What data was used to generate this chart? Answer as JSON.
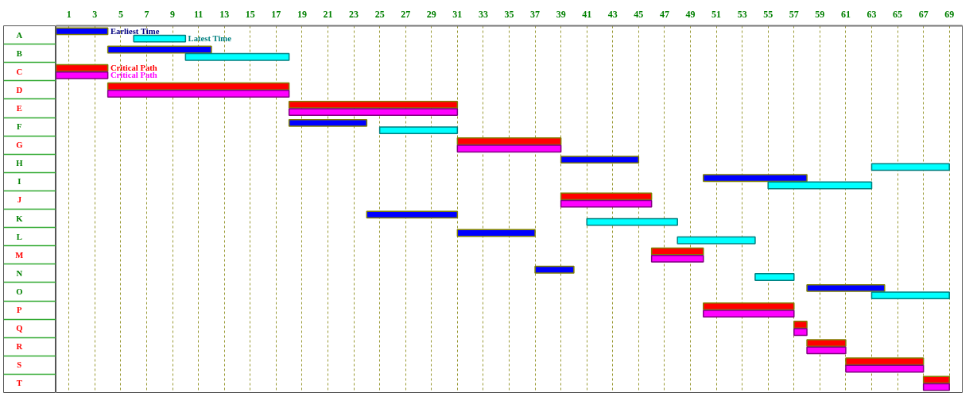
{
  "chart_data": {
    "type": "bar",
    "orientation": "horizontal",
    "legend": false,
    "grid": "x",
    "categories": [
      "A",
      "B",
      "C",
      "D",
      "E",
      "F",
      "G",
      "H",
      "I",
      "J",
      "K",
      "L",
      "M",
      "N",
      "O",
      "P",
      "Q",
      "R",
      "S",
      "T"
    ],
    "xlim": [
      0,
      70
    ],
    "xticks": [
      1,
      3,
      5,
      7,
      9,
      11,
      13,
      15,
      17,
      19,
      21,
      23,
      25,
      27,
      29,
      31,
      33,
      35,
      37,
      39,
      41,
      43,
      45,
      47,
      49,
      51,
      53,
      55,
      57,
      59,
      61,
      63,
      65,
      67,
      69
    ],
    "series": [
      {
        "name": "Earliest Time",
        "color": "#0000ff",
        "base": [
          0,
          4,
          null,
          null,
          null,
          18,
          null,
          39,
          50,
          null,
          24,
          31,
          null,
          37,
          58,
          null,
          null,
          null,
          null,
          null
        ],
        "values": [
          4,
          8,
          null,
          null,
          null,
          6,
          null,
          6,
          8,
          null,
          7,
          6,
          null,
          3,
          6,
          null,
          null,
          null,
          null,
          null
        ]
      },
      {
        "name": "Latest Time",
        "color": "#00ffff",
        "base": [
          6,
          10,
          null,
          null,
          null,
          25,
          null,
          63,
          55,
          null,
          41,
          48,
          null,
          54,
          63,
          null,
          null,
          null,
          null,
          null
        ],
        "values": [
          4,
          8,
          null,
          null,
          null,
          6,
          null,
          6,
          8,
          null,
          7,
          6,
          null,
          3,
          6,
          null,
          null,
          null,
          null,
          null
        ]
      },
      {
        "name": "Critical Path",
        "color": "#ff0000",
        "base": [
          null,
          null,
          0,
          4,
          18,
          null,
          31,
          null,
          null,
          39,
          null,
          null,
          46,
          null,
          null,
          50,
          57,
          58,
          61,
          67
        ],
        "values": [
          null,
          null,
          4,
          14,
          13,
          null,
          8,
          null,
          null,
          7,
          null,
          null,
          4,
          null,
          null,
          7,
          1,
          3,
          6,
          2
        ]
      },
      {
        "name": "Critical Path",
        "color": "#ff00ff",
        "base": [
          null,
          null,
          0,
          4,
          18,
          null,
          31,
          null,
          null,
          39,
          null,
          null,
          46,
          null,
          null,
          50,
          57,
          58,
          61,
          67
        ],
        "values": [
          null,
          null,
          4,
          14,
          13,
          null,
          8,
          null,
          null,
          7,
          null,
          null,
          4,
          null,
          null,
          7,
          1,
          3,
          6,
          2
        ]
      }
    ]
  }
}
